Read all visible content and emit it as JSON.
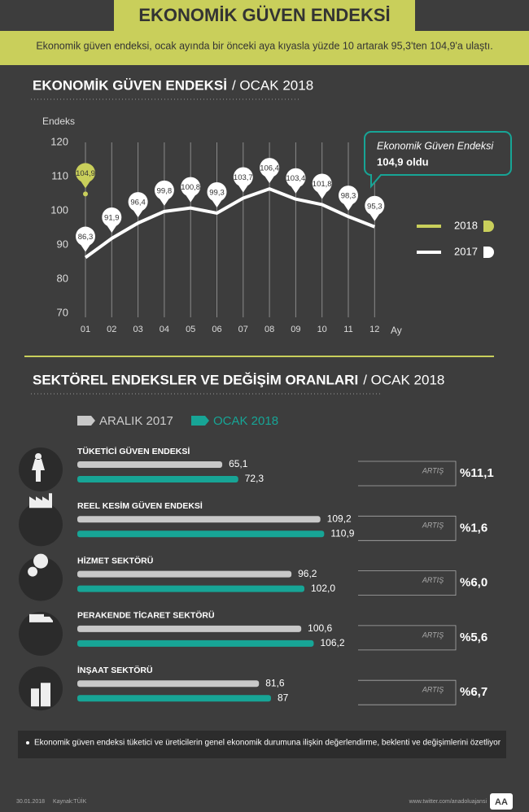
{
  "header": {
    "title": "EKONOMİK GÜVEN ENDEKSİ",
    "subtitle": "Ekonomik güven endeksi, ocak ayında bir önceki aya kıyasla yüzde 10 artarak 95,3'ten 104,9'a ulaştı."
  },
  "chart_data": [
    {
      "type": "line",
      "title": "EKONOMİK GÜVEN ENDEKSİ",
      "subtitle": "/ OCAK 2018",
      "y_label": "Endeks",
      "x_label": "Ay",
      "categories": [
        "01",
        "02",
        "03",
        "04",
        "05",
        "06",
        "07",
        "08",
        "09",
        "10",
        "11",
        "12"
      ],
      "series": [
        {
          "name": "2018",
          "color": "#c9cf5b",
          "values": [
            104.9,
            null,
            null,
            null,
            null,
            null,
            null,
            null,
            null,
            null,
            null,
            null
          ],
          "value_labels": [
            "104,9",
            null,
            null,
            null,
            null,
            null,
            null,
            null,
            null,
            null,
            null,
            null
          ]
        },
        {
          "name": "2017",
          "color": "#ffffff",
          "values": [
            86.3,
            91.9,
            96.4,
            99.8,
            100.8,
            99.3,
            103.7,
            106.4,
            103.4,
            101.8,
            98.3,
            95.3
          ],
          "value_labels": [
            "86,3",
            "91,9",
            "96,4",
            "99,8",
            "100,8",
            "99,3",
            "103,7",
            "106,4",
            "103,4",
            "101,8",
            "98,3",
            "95,3"
          ]
        }
      ],
      "ylim": [
        70,
        120
      ],
      "yticks": [
        70,
        80,
        90,
        100,
        110,
        120
      ],
      "annotation": [
        "Ekonomik Güven Endeksi",
        "104,9 oldu"
      ]
    },
    {
      "type": "hbar",
      "title": "SEKTÖREL ENDEKSLER VE DEĞİŞİM ORANLARI",
      "subtitle": "/ OCAK 2018",
      "categories": [
        "TÜKETİCİ GÜVEN ENDEKSİ",
        "REEL KESİM GÜVEN ENDEKSİ",
        "HİZMET SEKTÖRÜ",
        "PERAKENDE TİCARET SEKTÖRÜ",
        "İNŞAAT SEKTÖRÜ"
      ],
      "series": [
        {
          "name": "ARALIK 2017",
          "color": "#c8c8c8",
          "values": [
            65.1,
            109.2,
            96.2,
            100.6,
            81.6
          ],
          "value_labels": [
            "65,1",
            "109,2",
            "96,2",
            "100,6",
            "81,6"
          ]
        },
        {
          "name": "OCAK 2018",
          "color": "#17a596",
          "values": [
            72.3,
            110.9,
            102.0,
            106.2,
            87
          ],
          "value_labels": [
            "72,3",
            "110,9",
            "102,0",
            "106,2",
            "87"
          ]
        }
      ],
      "xlim": [
        0,
        170
      ],
      "change_caption": "ARTIŞ",
      "change_labels": [
        "%11,1",
        "%1,6",
        "%6,0",
        "%5,6",
        "%6,7"
      ]
    }
  ],
  "note": "Ekonomik güven endeksi tüketici ve üreticilerin genel ekonomik durumuna ilişkin değerlendirme, beklenti ve değişimlerini özetliyor",
  "footer": {
    "date": "30.01.2018",
    "source": "Kaynak:TÜİK",
    "url": "www.twitter.com/anadoluajansi",
    "logo": "AA"
  }
}
